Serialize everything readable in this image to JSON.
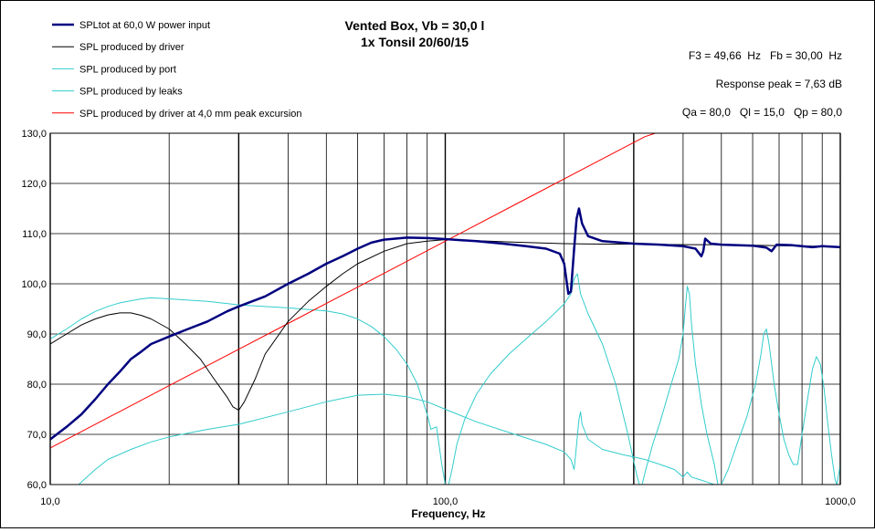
{
  "chart_data": {
    "type": "line",
    "title": "Vented Box, Vb = 30,0 l",
    "subtitle": "1x Tonsil 20/60/15",
    "xlabel": "Frequency, Hz",
    "ylabel": "",
    "x_scale": "log",
    "xlim": [
      10,
      1000
    ],
    "ylim": [
      60,
      130
    ],
    "grid": true,
    "legend_position": "top-left",
    "x_tick_labels": [
      "10,0",
      "100,0",
      "1000,0"
    ],
    "x_tick_values": [
      10,
      100,
      1000
    ],
    "y_tick_labels": [
      "60,0",
      "70,0",
      "80,0",
      "90,0",
      "100,0",
      "110,0",
      "120,0",
      "130,0"
    ],
    "y_tick_values": [
      60,
      70,
      80,
      90,
      100,
      110,
      120,
      130
    ],
    "annotations": [
      "F3 = 49,66  Hz   Fb = 30,00  Hz",
      "Response peak = 7,63 dB",
      "Qa = 80,0   Ql = 15,0   Qp = 80,0"
    ],
    "series": [
      {
        "name": "SPLtot at 60,0 W power input",
        "color": "#00007f",
        "width": 2.5,
        "points": [
          [
            10,
            69
          ],
          [
            11,
            71.5
          ],
          [
            12,
            74
          ],
          [
            13,
            77
          ],
          [
            14,
            80
          ],
          [
            15,
            82.5
          ],
          [
            16,
            85
          ],
          [
            17,
            86.5
          ],
          [
            18,
            88
          ],
          [
            20,
            89.5
          ],
          [
            22,
            90.8
          ],
          [
            25,
            92.5
          ],
          [
            28,
            94.5
          ],
          [
            30,
            95.5
          ],
          [
            35,
            97.5
          ],
          [
            40,
            100
          ],
          [
            45,
            102
          ],
          [
            50,
            104
          ],
          [
            55,
            105.5
          ],
          [
            60,
            107
          ],
          [
            65,
            108.2
          ],
          [
            70,
            108.8
          ],
          [
            80,
            109.2
          ],
          [
            90,
            109.1
          ],
          [
            100,
            108.9
          ],
          [
            120,
            108.5
          ],
          [
            140,
            108
          ],
          [
            160,
            107.5
          ],
          [
            180,
            107
          ],
          [
            195,
            106
          ],
          [
            200,
            104
          ],
          [
            205,
            98
          ],
          [
            208,
            98.5
          ],
          [
            212,
            107
          ],
          [
            215,
            113
          ],
          [
            218,
            115
          ],
          [
            222,
            112
          ],
          [
            230,
            109.5
          ],
          [
            250,
            108.5
          ],
          [
            300,
            108
          ],
          [
            350,
            107.8
          ],
          [
            400,
            107.5
          ],
          [
            430,
            107
          ],
          [
            445,
            105.5
          ],
          [
            450,
            106.5
          ],
          [
            455,
            109
          ],
          [
            470,
            108
          ],
          [
            500,
            107.8
          ],
          [
            600,
            107.6
          ],
          [
            650,
            107.2
          ],
          [
            670,
            106.5
          ],
          [
            690,
            107.8
          ],
          [
            750,
            107.7
          ],
          [
            850,
            107.3
          ],
          [
            900,
            107.5
          ],
          [
            1000,
            107.3
          ]
        ]
      },
      {
        "name": "SPL produced by driver",
        "color": "#000000",
        "width": 1,
        "points": [
          [
            10,
            88
          ],
          [
            11,
            90
          ],
          [
            12,
            91.8
          ],
          [
            13,
            93
          ],
          [
            14,
            93.8
          ],
          [
            15,
            94.2
          ],
          [
            16,
            94.2
          ],
          [
            17,
            93.7
          ],
          [
            18,
            93
          ],
          [
            20,
            91
          ],
          [
            22,
            88
          ],
          [
            24,
            85
          ],
          [
            26,
            81
          ],
          [
            28,
            77.5
          ],
          [
            29,
            75.5
          ],
          [
            30,
            74.8
          ],
          [
            31,
            76.5
          ],
          [
            33,
            81
          ],
          [
            35,
            86
          ],
          [
            38,
            90
          ],
          [
            40,
            92.5
          ],
          [
            45,
            96.5
          ],
          [
            50,
            99.5
          ],
          [
            55,
            102
          ],
          [
            60,
            104
          ],
          [
            70,
            106.5
          ],
          [
            80,
            108
          ],
          [
            90,
            108.5
          ],
          [
            100,
            108.8
          ],
          [
            120,
            108.6
          ],
          [
            150,
            108.3
          ],
          [
            200,
            108
          ],
          [
            250,
            107.9
          ],
          [
            300,
            107.9
          ],
          [
            400,
            107.8
          ],
          [
            500,
            107.8
          ],
          [
            700,
            107.6
          ],
          [
            1000,
            107.4
          ]
        ]
      },
      {
        "name": "SPL produced by port",
        "color": "#33cccc",
        "width": 1,
        "points": [
          [
            10,
            89
          ],
          [
            11,
            91
          ],
          [
            12,
            93
          ],
          [
            13,
            94.5
          ],
          [
            14,
            95.5
          ],
          [
            15,
            96.2
          ],
          [
            17,
            97
          ],
          [
            18,
            97.2
          ],
          [
            20,
            97
          ],
          [
            25,
            96.5
          ],
          [
            30,
            95.8
          ],
          [
            40,
            95.2
          ],
          [
            50,
            94.6
          ],
          [
            55,
            94
          ],
          [
            60,
            93
          ],
          [
            65,
            91.5
          ],
          [
            70,
            89.5
          ],
          [
            75,
            87
          ],
          [
            80,
            84
          ],
          [
            85,
            80
          ],
          [
            90,
            74
          ],
          [
            92,
            71
          ],
          [
            95,
            71.5
          ],
          [
            98,
            64
          ],
          [
            100,
            60
          ],
          [
            102,
            60
          ],
          [
            104,
            63
          ],
          [
            107,
            68
          ],
          [
            112,
            73
          ],
          [
            120,
            78
          ],
          [
            130,
            82
          ],
          [
            145,
            86
          ],
          [
            160,
            89
          ],
          [
            180,
            92.5
          ],
          [
            200,
            96
          ],
          [
            208,
            98
          ],
          [
            212,
            101
          ],
          [
            216,
            102
          ],
          [
            220,
            98
          ],
          [
            230,
            94
          ],
          [
            250,
            88
          ],
          [
            270,
            80
          ],
          [
            290,
            70
          ],
          [
            305,
            62
          ],
          [
            310,
            60
          ],
          [
            315,
            60
          ],
          [
            322,
            63
          ],
          [
            335,
            68
          ],
          [
            350,
            72.5
          ],
          [
            370,
            79
          ],
          [
            390,
            85
          ],
          [
            400,
            90
          ],
          [
            405,
            95
          ],
          [
            410,
            99.5
          ],
          [
            415,
            98
          ],
          [
            420,
            92
          ],
          [
            430,
            84
          ],
          [
            445,
            76
          ],
          [
            460,
            70
          ],
          [
            480,
            64
          ],
          [
            490,
            60
          ],
          [
            500,
            60
          ],
          [
            520,
            63
          ],
          [
            550,
            68.5
          ],
          [
            580,
            73.5
          ],
          [
            610,
            80
          ],
          [
            630,
            86
          ],
          [
            640,
            90
          ],
          [
            650,
            91
          ],
          [
            660,
            88
          ],
          [
            680,
            80
          ],
          [
            700,
            74
          ],
          [
            720,
            69
          ],
          [
            740,
            66
          ],
          [
            760,
            64
          ],
          [
            780,
            64
          ],
          [
            800,
            70
          ],
          [
            830,
            78
          ],
          [
            850,
            83
          ],
          [
            870,
            85.5
          ],
          [
            890,
            84
          ],
          [
            910,
            79
          ],
          [
            930,
            72
          ],
          [
            950,
            66
          ],
          [
            970,
            61
          ],
          [
            980,
            60
          ],
          [
            995,
            63
          ],
          [
            1000,
            64
          ]
        ]
      },
      {
        "name": "SPL produced by leaks",
        "color": "#33cccc",
        "width": 1,
        "points": [
          [
            11.8,
            60
          ],
          [
            13,
            63
          ],
          [
            14,
            65
          ],
          [
            16,
            67
          ],
          [
            18,
            68.5
          ],
          [
            20,
            69.5
          ],
          [
            25,
            71
          ],
          [
            30,
            72
          ],
          [
            40,
            74.5
          ],
          [
            50,
            76.5
          ],
          [
            60,
            77.8
          ],
          [
            70,
            78
          ],
          [
            80,
            77.5
          ],
          [
            90,
            76.5
          ],
          [
            100,
            75
          ],
          [
            120,
            72.5
          ],
          [
            150,
            70
          ],
          [
            180,
            68
          ],
          [
            200,
            66.5
          ],
          [
            208,
            65
          ],
          [
            212,
            63
          ],
          [
            215,
            68
          ],
          [
            218,
            73
          ],
          [
            220,
            74.5
          ],
          [
            222,
            72
          ],
          [
            230,
            69
          ],
          [
            250,
            67
          ],
          [
            280,
            66
          ],
          [
            300,
            65.5
          ],
          [
            320,
            65
          ],
          [
            350,
            64
          ],
          [
            380,
            63
          ],
          [
            400,
            61.5
          ],
          [
            410,
            62.5
          ],
          [
            420,
            61.5
          ],
          [
            440,
            61
          ],
          [
            460,
            60.5
          ],
          [
            480,
            60
          ]
        ]
      },
      {
        "name": "SPL produced by driver at 4,0 mm peak excursion",
        "color": "#ff0000",
        "width": 1,
        "points": [
          [
            10,
            67.3
          ],
          [
            20,
            79.7
          ],
          [
            40,
            92.1
          ],
          [
            80,
            104.5
          ],
          [
            160,
            116.9
          ],
          [
            320,
            129.3
          ],
          [
            340,
            130
          ]
        ]
      }
    ]
  }
}
